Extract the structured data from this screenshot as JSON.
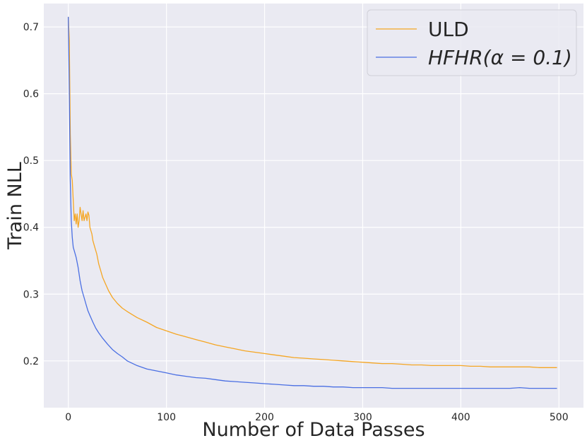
{
  "chart_data": {
    "type": "line",
    "title": "",
    "xlabel": "Number of Data Passes",
    "ylabel": "Train NLL",
    "xlim": [
      -25,
      525
    ],
    "ylim": [
      0.13,
      0.735
    ],
    "xticks": [
      0,
      100,
      200,
      300,
      400,
      500
    ],
    "yticks": [
      0.2,
      0.3,
      0.4,
      0.5,
      0.6,
      0.7
    ],
    "xtick_labels": [
      "0",
      "100",
      "200",
      "300",
      "400",
      "500"
    ],
    "ytick_labels": [
      "0.2",
      "0.3",
      "0.4",
      "0.5",
      "0.6",
      "0.7"
    ],
    "grid": true,
    "background": "#eaeaf2",
    "legend_position": "top-right",
    "series": [
      {
        "name": "ULD",
        "color": "#f5a623",
        "x": [
          0,
          1,
          2,
          3,
          4,
          5,
          6,
          7,
          8,
          9,
          10,
          11,
          12,
          13,
          14,
          15,
          16,
          17,
          18,
          19,
          20,
          21,
          22,
          23,
          24,
          25,
          27,
          29,
          31,
          33,
          35,
          38,
          41,
          45,
          50,
          55,
          60,
          70,
          80,
          90,
          100,
          110,
          120,
          130,
          140,
          150,
          160,
          170,
          180,
          190,
          200,
          210,
          220,
          230,
          240,
          250,
          260,
          270,
          280,
          290,
          300,
          310,
          320,
          330,
          340,
          350,
          360,
          370,
          380,
          390,
          400,
          410,
          420,
          430,
          440,
          450,
          460,
          470,
          480,
          490,
          498
        ],
        "y": [
          0.715,
          0.68,
          0.54,
          0.48,
          0.47,
          0.44,
          0.41,
          0.42,
          0.405,
          0.42,
          0.4,
          0.41,
          0.43,
          0.42,
          0.41,
          0.425,
          0.41,
          0.415,
          0.42,
          0.41,
          0.423,
          0.418,
          0.4,
          0.395,
          0.39,
          0.38,
          0.37,
          0.36,
          0.345,
          0.335,
          0.325,
          0.315,
          0.305,
          0.295,
          0.286,
          0.279,
          0.274,
          0.265,
          0.258,
          0.25,
          0.245,
          0.24,
          0.236,
          0.232,
          0.228,
          0.224,
          0.221,
          0.218,
          0.215,
          0.213,
          0.211,
          0.209,
          0.207,
          0.205,
          0.204,
          0.203,
          0.202,
          0.201,
          0.2,
          0.199,
          0.198,
          0.197,
          0.196,
          0.196,
          0.195,
          0.194,
          0.194,
          0.193,
          0.193,
          0.193,
          0.193,
          0.192,
          0.192,
          0.191,
          0.191,
          0.191,
          0.191,
          0.191,
          0.19,
          0.19,
          0.19
        ]
      },
      {
        "name": "HFHR(α = 0.1)",
        "color": "#4a6fe3",
        "x": [
          0,
          1,
          2,
          3,
          4,
          5,
          6,
          8,
          10,
          12,
          14,
          16,
          18,
          20,
          22,
          25,
          28,
          31,
          35,
          40,
          45,
          50,
          55,
          60,
          70,
          80,
          90,
          100,
          110,
          120,
          130,
          140,
          150,
          160,
          170,
          180,
          190,
          200,
          210,
          220,
          230,
          240,
          250,
          260,
          270,
          280,
          290,
          300,
          310,
          320,
          330,
          340,
          350,
          360,
          370,
          380,
          390,
          400,
          410,
          420,
          430,
          440,
          450,
          460,
          470,
          480,
          490,
          498
        ],
        "y": [
          0.715,
          0.6,
          0.47,
          0.41,
          0.385,
          0.37,
          0.365,
          0.355,
          0.34,
          0.32,
          0.305,
          0.295,
          0.285,
          0.275,
          0.268,
          0.258,
          0.249,
          0.242,
          0.234,
          0.225,
          0.217,
          0.211,
          0.206,
          0.2,
          0.193,
          0.188,
          0.185,
          0.182,
          0.179,
          0.177,
          0.175,
          0.174,
          0.172,
          0.17,
          0.169,
          0.168,
          0.167,
          0.166,
          0.165,
          0.164,
          0.163,
          0.163,
          0.162,
          0.162,
          0.161,
          0.161,
          0.16,
          0.16,
          0.16,
          0.16,
          0.159,
          0.159,
          0.159,
          0.159,
          0.159,
          0.159,
          0.159,
          0.159,
          0.159,
          0.159,
          0.159,
          0.159,
          0.159,
          0.16,
          0.159,
          0.159,
          0.159,
          0.159
        ]
      }
    ]
  }
}
